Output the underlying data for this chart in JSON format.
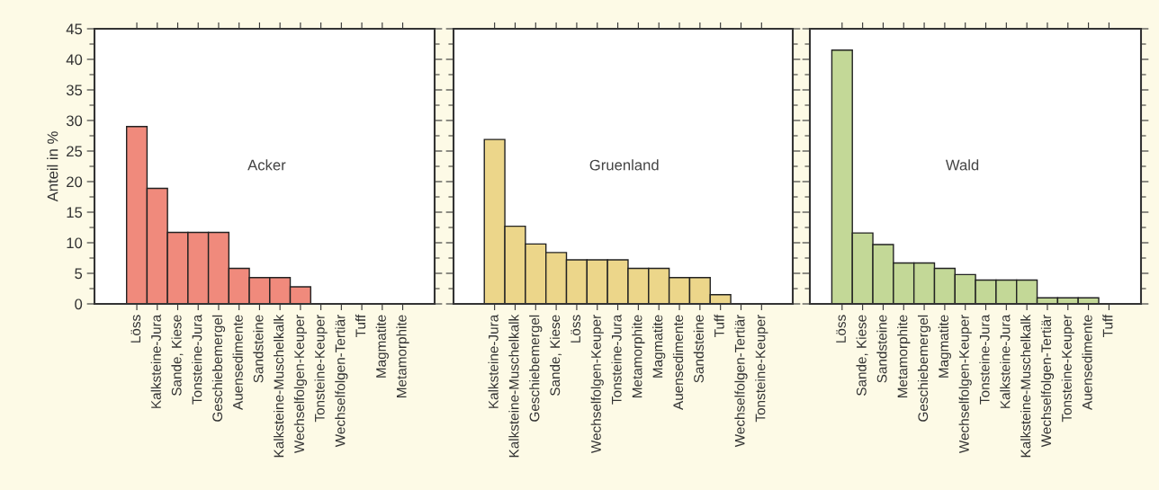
{
  "chart_data": [
    {
      "type": "bar",
      "ylabel": "Anteil in %",
      "annotations": [
        "Acker"
      ],
      "categories": [
        "Löss",
        "Kalksteine-Jura",
        "Sande, Kiese",
        "Tonsteine-Jura",
        "Geschiebemergel",
        "Auensedimente",
        "Sandsteine",
        "Kalksteine-Muschelkalk",
        "Wechselfolgen-Keuper",
        "Tonsteine-Keuper",
        "Wechselfolgen-Tertiär",
        "Tuff",
        "Magmatite",
        "Metamorphite"
      ],
      "values": [
        29,
        18.9,
        11.7,
        11.7,
        11.7,
        5.8,
        4.3,
        4.3,
        2.8,
        0,
        0,
        0,
        0,
        0
      ],
      "color": "#f08a7c",
      "ylim": [
        0,
        45
      ],
      "yticks": [
        0,
        5,
        10,
        15,
        20,
        25,
        30,
        35,
        40,
        45
      ],
      "grid": false
    },
    {
      "type": "bar",
      "annotations": [
        "Gruenland"
      ],
      "categories": [
        "Kalksteine-Jura",
        "Kalksteine-Muschelkalk",
        "Geschiebemergel",
        "Sande, Kiese",
        "Löss",
        "Wechselfolgen-Keuper",
        "Tonsteine-Jura",
        "Metamorphite",
        "Magmatite",
        "Auensedimente",
        "Sandsteine",
        "Tuff",
        "Wechselfolgen-Tertiär",
        "Tonsteine-Keuper"
      ],
      "values": [
        26.9,
        12.7,
        9.8,
        8.4,
        7.2,
        7.2,
        7.2,
        5.8,
        5.8,
        4.3,
        4.3,
        1.5,
        0,
        0
      ],
      "color": "#ecd68a",
      "ylim": [
        0,
        45
      ],
      "yticks": [
        0,
        5,
        10,
        15,
        20,
        25,
        30,
        35,
        40,
        45
      ],
      "tick_labels": "x",
      "grid": false
    },
    {
      "type": "bar",
      "annotations": [
        "Wald"
      ],
      "categories": [
        "Löss",
        "Sande, Kiese",
        "Sandsteine",
        "Metamorphite",
        "Geschiebemergel",
        "Magmatite",
        "Wechselfolgen-Keuper",
        "Tonsteine-Jura",
        "Kalksteine-Jura",
        "Kalksteine-Muschelkalk",
        "Wechselfolgen-Tertiär",
        "Tonsteine-Keuper",
        "Auensedimente",
        "Tuff"
      ],
      "values": [
        41.5,
        11.6,
        9.7,
        6.7,
        6.7,
        5.8,
        4.8,
        3.9,
        3.9,
        3.9,
        1,
        1,
        1,
        0
      ],
      "color": "#c3d897",
      "ylim": [
        0,
        45
      ],
      "yticks": [
        0,
        5,
        10,
        15,
        20,
        25,
        30,
        35,
        40,
        45
      ],
      "tick_labels": "x",
      "grid": false
    }
  ]
}
